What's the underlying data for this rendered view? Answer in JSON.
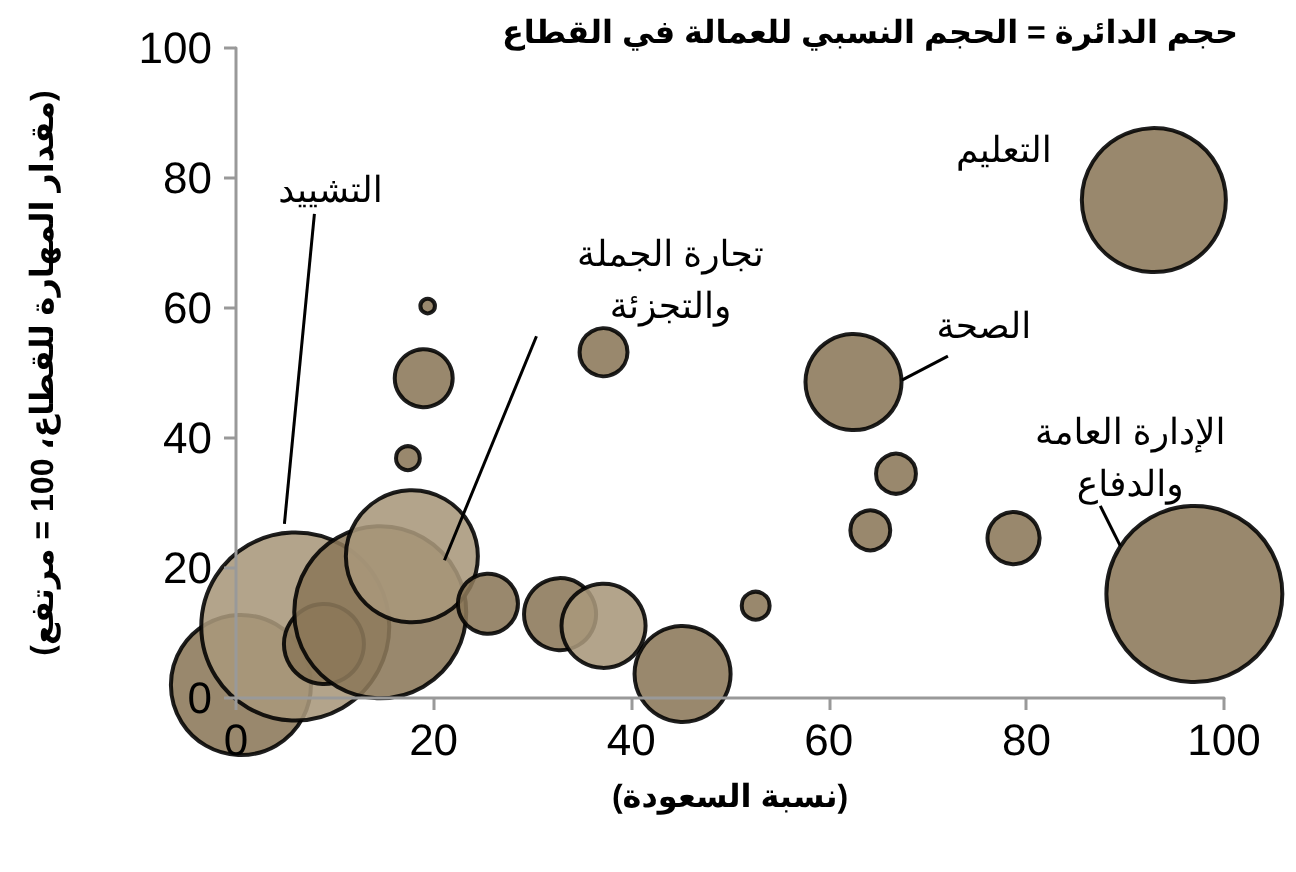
{
  "chart_data": {
    "type": "bubble",
    "title": "حجم الدائرة = الحجم النسبي للعمالة في القطاع",
    "xlabel": "(نسبة السعودة)",
    "ylabel": "(مقدار المهارة للقطاع، 100 = مرتفع)",
    "x": [
      0.5,
      6,
      8.9,
      14.6,
      17.8,
      19,
      19.4,
      17.4,
      25.5,
      32.8,
      37.2,
      45.2,
      52.6,
      37.2,
      62.5,
      66.8,
      64.2,
      78.7,
      92.9,
      97
    ],
    "values": [
      2,
      11,
      8.3,
      13.2,
      21.8,
      49.2,
      60.3,
      36.9,
      14.5,
      12.9,
      11.1,
      3.7,
      14.2,
      53.2,
      48.6,
      34.5,
      25.8,
      24.6,
      76.6,
      16
    ],
    "sizes": [
      0.555,
      1,
      0.181,
      0.837,
      0.493,
      0.095,
      0.006,
      0.016,
      0.102,
      0.147,
      0.2,
      0.261,
      0.022,
      0.065,
      0.261,
      0.045,
      0.045,
      0.077,
      0.587,
      0.876
    ],
    "colors": [
      "#8b7759",
      "#a8977b",
      "#8b7759",
      "#8b7759",
      "#a8977b",
      "#8b7759",
      "#8b7759",
      "#8b7759",
      "#8b7759",
      "#8b7759",
      "#a8977b",
      "#8b7759",
      "#8b7759",
      "#8b7759",
      "#8b7759",
      "#8b7759",
      "#8b7759",
      "#8b7759",
      "#8b7759",
      "#8b7759"
    ],
    "xlim": [
      0,
      100
    ],
    "xticks": [
      0,
      20,
      40,
      60,
      80,
      100
    ],
    "ylim": [
      0,
      100
    ],
    "yticks": [
      0,
      20,
      40,
      60,
      80,
      100
    ],
    "grid": false,
    "annotations": [
      {
        "text": "التشييد",
        "x": 4.9,
        "y": 26.8
      },
      {
        "text": "تجارة الجملة\nوالتجزئة",
        "x": 21.1,
        "y": 21.2
      },
      {
        "text": "الصحة",
        "x": 67.4,
        "y": 48.9
      },
      {
        "text": "التعليم",
        "x": 92.9,
        "y": 76.6
      },
      {
        "text": "الإدارة العامة\nوالدفاع",
        "x": 89.5,
        "y": 23.4
      }
    ]
  }
}
